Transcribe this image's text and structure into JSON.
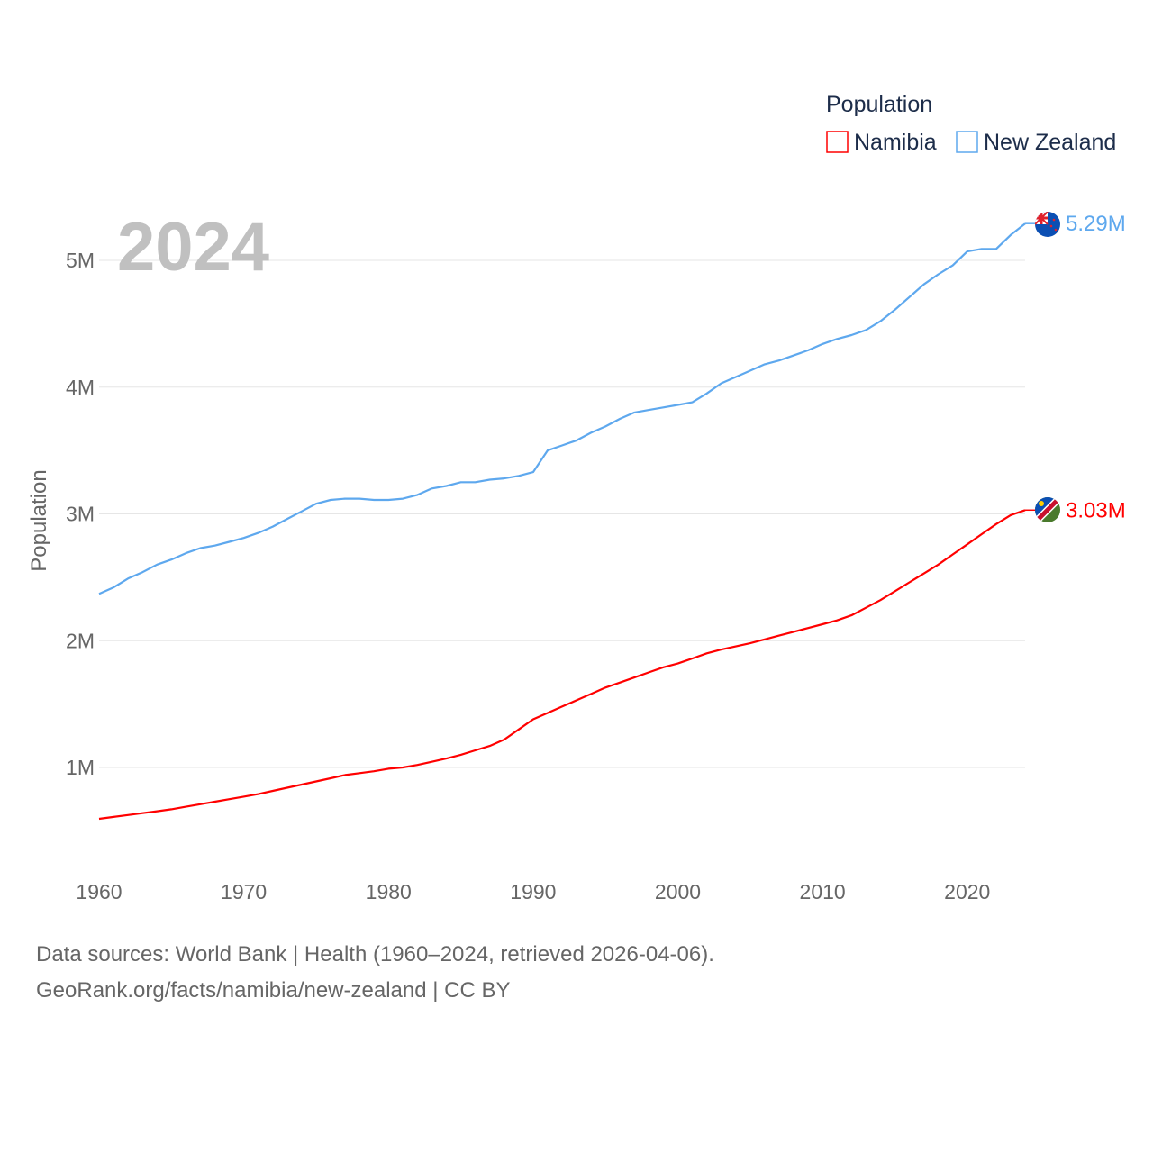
{
  "chart_data": {
    "type": "line",
    "title": "",
    "xlabel": "",
    "ylabel": "Population",
    "xlim": [
      1960,
      2024
    ],
    "ylim": [
      0.4,
      5.45
    ],
    "yunit": "millions",
    "grid": true,
    "year_label": "2024",
    "x_ticks": [
      "1960",
      "1970",
      "1980",
      "1990",
      "2000",
      "2010",
      "2020"
    ],
    "y_ticks": [
      {
        "value": 1,
        "label": "1M"
      },
      {
        "value": 2,
        "label": "2M"
      },
      {
        "value": 3,
        "label": "3M"
      },
      {
        "value": 4,
        "label": "4M"
      },
      {
        "value": 5,
        "label": "5M"
      }
    ],
    "legend": {
      "title": "Population",
      "placement": "top-right"
    },
    "x": [
      1960,
      1961,
      1962,
      1963,
      1964,
      1965,
      1966,
      1967,
      1968,
      1969,
      1970,
      1971,
      1972,
      1973,
      1974,
      1975,
      1976,
      1977,
      1978,
      1979,
      1980,
      1981,
      1982,
      1983,
      1984,
      1985,
      1986,
      1987,
      1988,
      1989,
      1990,
      1991,
      1992,
      1993,
      1994,
      1995,
      1996,
      1997,
      1998,
      1999,
      2000,
      2001,
      2002,
      2003,
      2004,
      2005,
      2006,
      2007,
      2008,
      2009,
      2010,
      2011,
      2012,
      2013,
      2014,
      2015,
      2016,
      2017,
      2018,
      2019,
      2020,
      2021,
      2022,
      2023,
      2024
    ],
    "series": [
      {
        "name": "Namibia",
        "color": "#ff0000",
        "end_label": "3.03M",
        "flag": "namibia-flag",
        "values": [
          0.595,
          0.61,
          0.625,
          0.64,
          0.655,
          0.67,
          0.69,
          0.71,
          0.73,
          0.75,
          0.77,
          0.79,
          0.815,
          0.84,
          0.865,
          0.89,
          0.915,
          0.94,
          0.955,
          0.97,
          0.99,
          1.0,
          1.02,
          1.045,
          1.07,
          1.1,
          1.135,
          1.17,
          1.22,
          1.3,
          1.38,
          1.43,
          1.48,
          1.53,
          1.58,
          1.63,
          1.67,
          1.71,
          1.75,
          1.79,
          1.82,
          1.86,
          1.9,
          1.93,
          1.955,
          1.98,
          2.01,
          2.04,
          2.07,
          2.1,
          2.13,
          2.16,
          2.2,
          2.26,
          2.32,
          2.39,
          2.46,
          2.53,
          2.6,
          2.68,
          2.76,
          2.84,
          2.92,
          2.99,
          3.03
        ]
      },
      {
        "name": "New Zealand",
        "color": "#5ea8ee",
        "end_label": "5.29M",
        "flag": "new-zealand-flag",
        "values": [
          2.37,
          2.42,
          2.49,
          2.54,
          2.6,
          2.64,
          2.69,
          2.73,
          2.75,
          2.78,
          2.81,
          2.85,
          2.9,
          2.96,
          3.02,
          3.08,
          3.11,
          3.12,
          3.12,
          3.11,
          3.11,
          3.12,
          3.15,
          3.2,
          3.22,
          3.25,
          3.25,
          3.27,
          3.28,
          3.3,
          3.33,
          3.5,
          3.54,
          3.58,
          3.64,
          3.69,
          3.75,
          3.8,
          3.82,
          3.84,
          3.86,
          3.88,
          3.95,
          4.03,
          4.08,
          4.13,
          4.18,
          4.21,
          4.25,
          4.29,
          4.34,
          4.38,
          4.41,
          4.45,
          4.52,
          4.61,
          4.71,
          4.81,
          4.89,
          4.96,
          5.07,
          5.09,
          5.09,
          5.2,
          5.29
        ]
      }
    ]
  },
  "footer": {
    "line1": "Data sources: World Bank | Health (1960–2024, retrieved 2026-04-06).",
    "line2": "GeoRank.org/facts/namibia/new-zealand | CC BY"
  }
}
